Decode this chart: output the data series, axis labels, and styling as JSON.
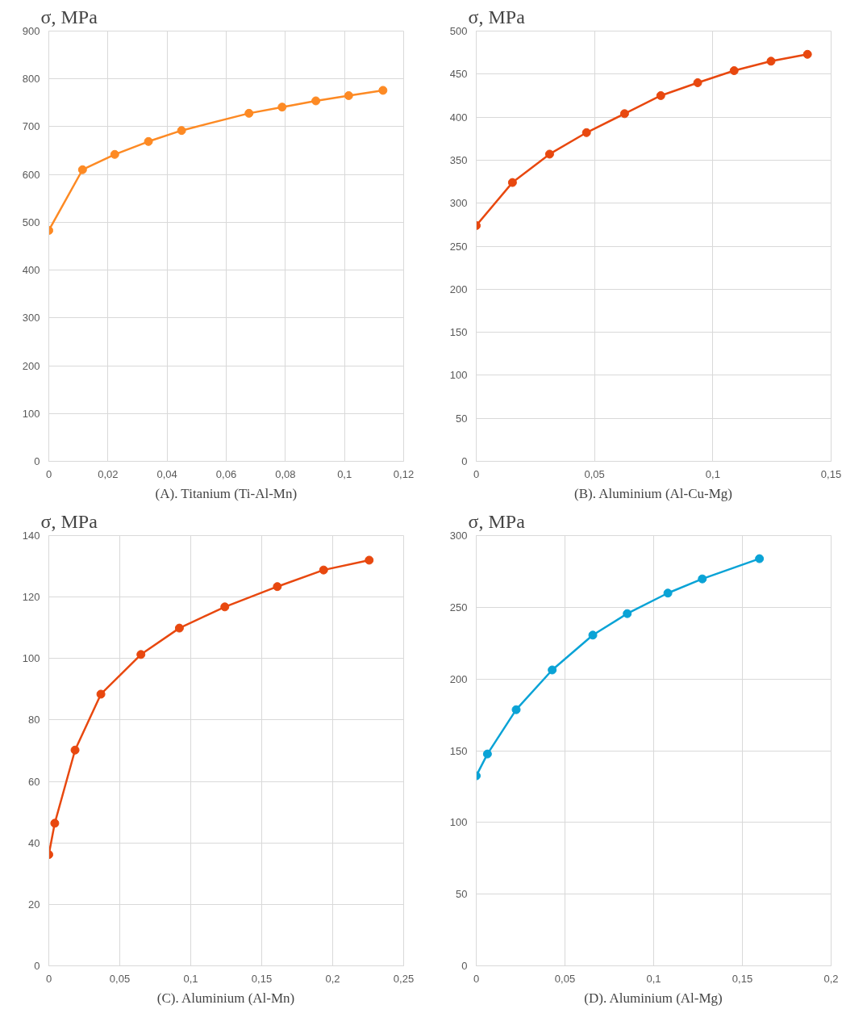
{
  "chart_data": [
    {
      "type": "line",
      "title": "(A). Titanium (Ti-Al-Mn)",
      "ylabel": "σ, MPa",
      "grid": true,
      "marker": "circle",
      "line_style": "solid",
      "x": [
        0,
        0.0114,
        0.0223,
        0.0337,
        0.0449,
        0.0677,
        0.0789,
        0.0903,
        0.1014,
        0.113
      ],
      "series": [
        {
          "color": "#fd8a24",
          "values": [
            483,
            610,
            642,
            669,
            692,
            728,
            741,
            754,
            765,
            776
          ]
        }
      ],
      "xlim": [
        0,
        0.12
      ],
      "xticks": [
        0,
        {
          "value": 0.02,
          "label": "0,02"
        },
        {
          "value": 0.04,
          "label": "0,04"
        },
        {
          "value": 0.06,
          "label": "0,06"
        },
        {
          "value": 0.08,
          "label": "0,08"
        },
        {
          "value": 0.1,
          "label": "0,1"
        },
        {
          "value": 0.12,
          "label": "0,12"
        }
      ],
      "ylim": [
        0,
        900
      ],
      "yticks": [
        0,
        100,
        200,
        300,
        400,
        500,
        600,
        700,
        800,
        900
      ]
    },
    {
      "type": "line",
      "title": "(B). Aluminium (Al-Cu-Mg)",
      "ylabel": "σ, MPa",
      "grid": true,
      "marker": "circle",
      "line_style": "solid",
      "x": [
        0,
        0.0153,
        0.031,
        0.0466,
        0.0627,
        0.078,
        0.0936,
        0.109,
        0.1246,
        0.14
      ],
      "series": [
        {
          "color": "#e8480f",
          "values": [
            274,
            324,
            357,
            382,
            404,
            425,
            440,
            454,
            465,
            473
          ]
        }
      ],
      "xlim": [
        0,
        0.15
      ],
      "xticks": [
        0,
        {
          "value": 0.05,
          "label": "0,05"
        },
        {
          "value": 0.1,
          "label": "0,1"
        },
        {
          "value": 0.15,
          "label": "0,15"
        }
      ],
      "ylim": [
        0,
        500
      ],
      "yticks": [
        0,
        50,
        100,
        150,
        200,
        250,
        300,
        350,
        400,
        450,
        500
      ]
    },
    {
      "type": "line",
      "title": "(C). Aluminium (Al-Mn)",
      "ylabel": "σ, MPa",
      "grid": true,
      "marker": "circle",
      "line_style": "solid",
      "x": [
        0,
        0.0042,
        0.0185,
        0.0367,
        0.0649,
        0.092,
        0.124,
        0.161,
        0.1936,
        0.2257
      ],
      "series": [
        {
          "color": "#e8480f",
          "values": [
            36.2,
            46.4,
            70.2,
            88.4,
            101.3,
            109.9,
            116.8,
            123.4,
            128.8,
            132.0
          ]
        }
      ],
      "xlim": [
        0,
        0.25
      ],
      "xticks": [
        0,
        {
          "value": 0.05,
          "label": "0,05"
        },
        {
          "value": 0.1,
          "label": "0,1"
        },
        {
          "value": 0.15,
          "label": "0,15"
        },
        {
          "value": 0.2,
          "label": "0,2"
        },
        {
          "value": 0.25,
          "label": "0,25"
        }
      ],
      "ylim": [
        0,
        140
      ],
      "yticks": [
        0,
        20,
        40,
        60,
        80,
        100,
        120,
        140
      ]
    },
    {
      "type": "line",
      "title": "(D). Aluminium (Al-Mg)",
      "ylabel": "σ, MPa",
      "grid": true,
      "marker": "circle",
      "line_style": "solid",
      "x": [
        0,
        0.0063,
        0.0225,
        0.0428,
        0.0657,
        0.0851,
        0.108,
        0.1274,
        0.1596
      ],
      "series": [
        {
          "color": "#0aa3d6",
          "values": [
            132.5,
            147.7,
            178.6,
            206.3,
            230.6,
            245.6,
            259.9,
            269.8,
            283.9
          ]
        }
      ],
      "xlim": [
        0,
        0.2
      ],
      "xticks": [
        0,
        {
          "value": 0.05,
          "label": "0,05"
        },
        {
          "value": 0.1,
          "label": "0,1"
        },
        {
          "value": 0.15,
          "label": "0,15"
        },
        {
          "value": 0.2,
          "label": "0,2"
        }
      ],
      "ylim": [
        0,
        300
      ],
      "yticks": [
        0,
        50,
        100,
        150,
        200,
        250,
        300
      ]
    }
  ]
}
